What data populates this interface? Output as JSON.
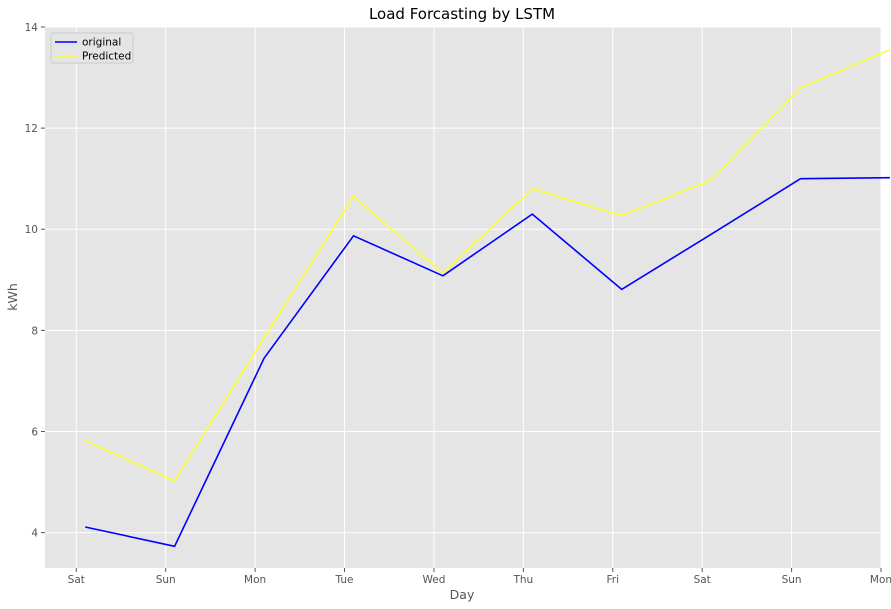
{
  "chart_data": {
    "type": "line",
    "title": "Load Forcasting by LSTM",
    "xlabel": "Day",
    "ylabel": "kWh",
    "xlim": [
      0,
      9.35
    ],
    "ylim": [
      3.3,
      14.0
    ],
    "x_ticks": [
      {
        "x": 0.35,
        "label": "Sat"
      },
      {
        "x": 1.35,
        "label": "Sun"
      },
      {
        "x": 2.35,
        "label": "Mon"
      },
      {
        "x": 3.35,
        "label": "Tue"
      },
      {
        "x": 4.35,
        "label": "Wed"
      },
      {
        "x": 5.35,
        "label": "Thu"
      },
      {
        "x": 6.35,
        "label": "Fri"
      },
      {
        "x": 7.35,
        "label": "Sat"
      },
      {
        "x": 8.35,
        "label": "Sun"
      },
      {
        "x": 9.35,
        "label": "Mon"
      }
    ],
    "y_ticks": [
      4,
      6,
      8,
      10,
      12,
      14
    ],
    "grid": true,
    "legend_position": "top-left",
    "series": [
      {
        "name": "original",
        "color": "#0000ff",
        "x": [
          0.45,
          1.45,
          2.45,
          3.45,
          4.45,
          5.45,
          6.45,
          7.45,
          8.45,
          9.45
        ],
        "y": [
          4.11,
          3.73,
          7.45,
          9.87,
          9.08,
          10.3,
          8.81,
          9.9,
          11.0,
          11.02
        ]
      },
      {
        "name": "Predicted",
        "color": "#ffff33",
        "x": [
          0.45,
          1.45,
          2.45,
          3.45,
          4.45,
          5.45,
          6.45,
          7.45,
          8.45,
          9.45
        ],
        "y": [
          5.82,
          5.02,
          7.85,
          10.65,
          9.13,
          10.8,
          10.27,
          10.97,
          12.8,
          13.55
        ]
      }
    ]
  }
}
